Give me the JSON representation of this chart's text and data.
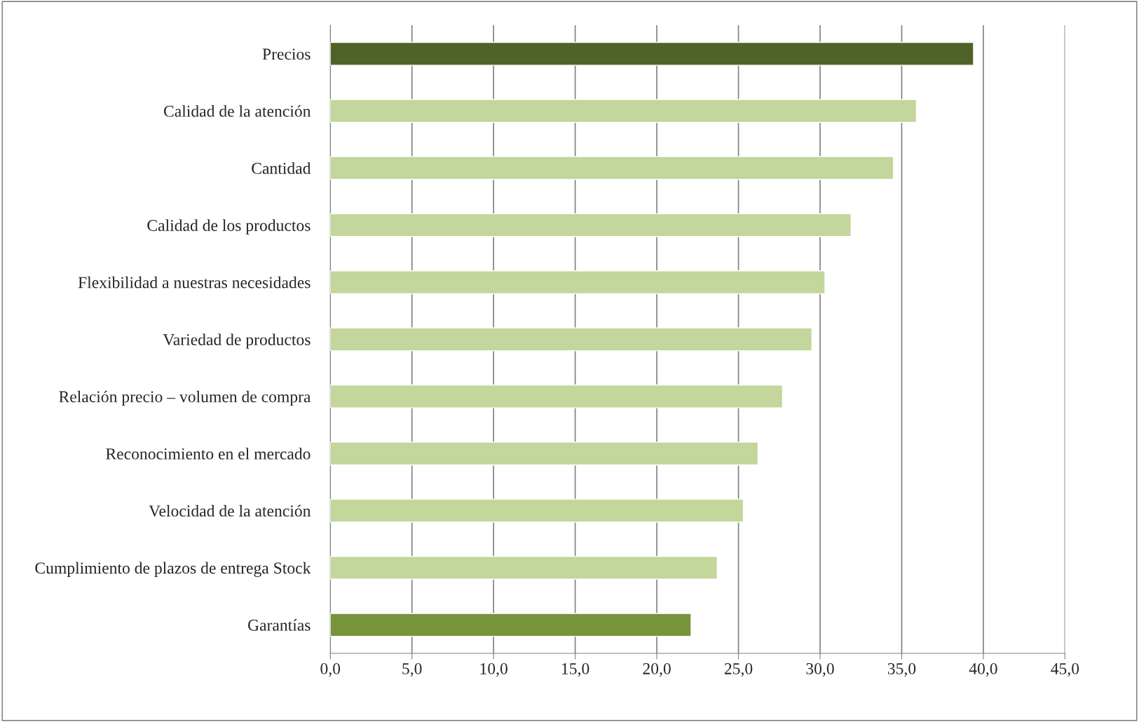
{
  "chart_data": {
    "type": "bar",
    "orientation": "horizontal",
    "categories": [
      "Precios",
      "Calidad de la atención",
      "Cantidad",
      "Calidad de los productos",
      "Flexibilidad a nuestras necesidades",
      "Variedad de productos",
      "Relación precio – volumen de compra",
      "Reconocimiento en el mercado",
      "Velocidad de la atención",
      "Cumplimiento de plazos de entrega Stock",
      "Garantías"
    ],
    "values": [
      39.4,
      35.9,
      34.5,
      31.9,
      30.3,
      29.5,
      27.7,
      26.2,
      25.3,
      23.7,
      22.1
    ],
    "colors": [
      "#4f6228",
      "#c3d69b",
      "#c3d69b",
      "#c3d69b",
      "#c3d69b",
      "#c3d69b",
      "#c3d69b",
      "#c3d69b",
      "#c3d69b",
      "#c3d69b",
      "#77933c"
    ],
    "xlim": [
      0,
      45
    ],
    "xticks": [
      {
        "value": 0,
        "label": "0,0"
      },
      {
        "value": 5,
        "label": "5,0"
      },
      {
        "value": 10,
        "label": "10,0"
      },
      {
        "value": 15,
        "label": "15,0"
      },
      {
        "value": 20,
        "label": "20,0"
      },
      {
        "value": 25,
        "label": "25,0"
      },
      {
        "value": 30,
        "label": "30,0"
      },
      {
        "value": 35,
        "label": "35,0"
      },
      {
        "value": 40,
        "label": "40,0"
      },
      {
        "value": 45,
        "label": "45,0"
      }
    ],
    "grid": "x",
    "legend": false
  }
}
